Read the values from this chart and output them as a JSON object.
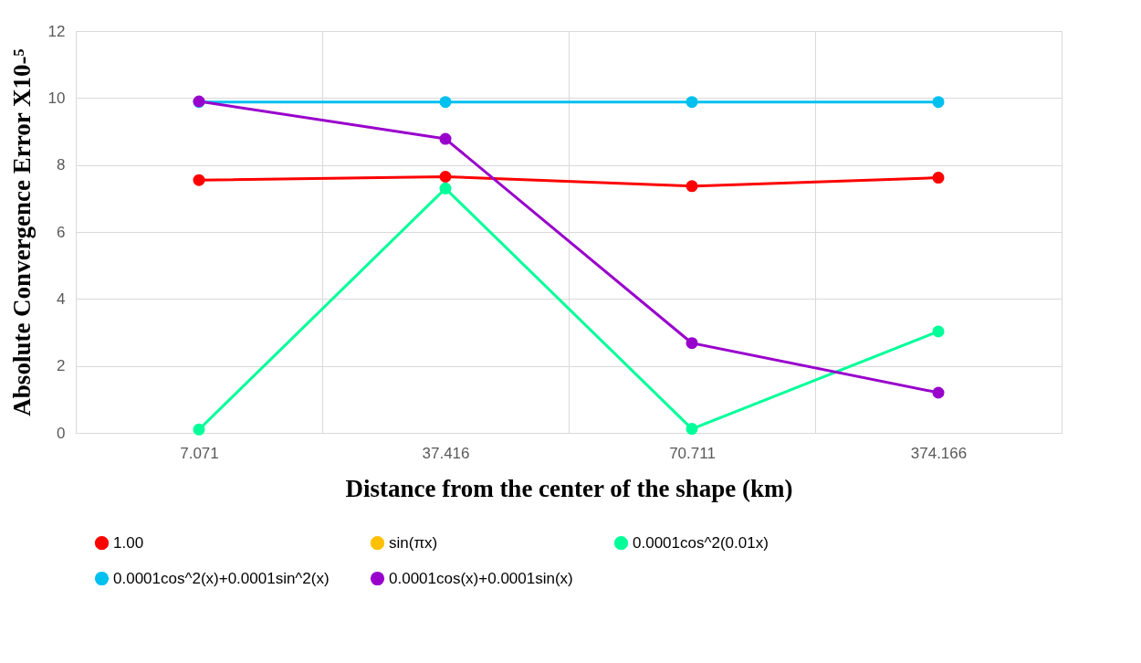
{
  "chart_data": {
    "type": "line",
    "xlabel": "Distance from the center of the shape (km)",
    "ylabel": "Absolute Convergence Error X10-⁵",
    "categories": [
      "7.071",
      "37.416",
      "70.711",
      "374.166"
    ],
    "series": [
      {
        "name": "1.00",
        "color": "#ff0000",
        "values": [
          7.55,
          7.65,
          7.37,
          7.62
        ]
      },
      {
        "name": "sin⁡(πx)",
        "color": "#ffc000",
        "values": [
          null,
          null,
          null,
          null
        ]
      },
      {
        "name": "0.0001cos^2(0.01x)",
        "color": "#00ff99",
        "values": [
          0.1,
          7.3,
          0.12,
          3.03
        ]
      },
      {
        "name": "0.0001cos^2(x)+0.0001sin^2(x)",
        "color": "#00c0f0",
        "values": [
          9.88,
          9.88,
          9.88,
          9.88
        ]
      },
      {
        "name": "0.0001cos(x)+0.0001sin(x)",
        "color": "#9900cc",
        "values": [
          9.9,
          8.78,
          2.68,
          1.2
        ]
      }
    ],
    "ylim": [
      0,
      12
    ],
    "yticks": [
      0,
      2,
      4,
      6,
      8,
      10,
      12
    ],
    "grid": true,
    "legend": "bottom",
    "marker": "circle",
    "line_style": "solid"
  }
}
